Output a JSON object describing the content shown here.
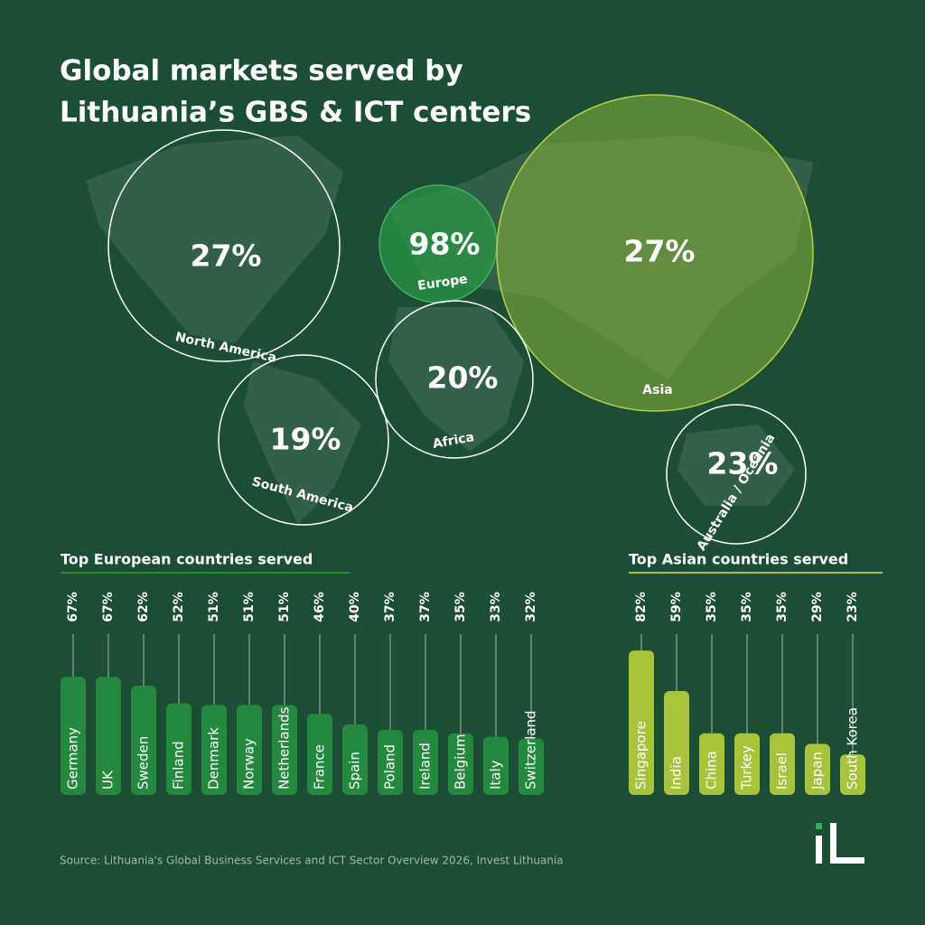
{
  "title": [
    "Global markets served by",
    "Lithuania’s GBS & ICT centers"
  ],
  "source": "Source: Lithuania's Global Business Services and ICT Sector Overview 2026, Invest Lithuania",
  "chart_data": [
    {
      "type": "bubble_map",
      "categories": [
        "North America",
        "Europe",
        "Asia",
        "Africa",
        "South America",
        "Australia / Oceania"
      ],
      "values": [
        27,
        98,
        27,
        20,
        19,
        23
      ],
      "value_labels": [
        "27%",
        "98%",
        "27%",
        "20%",
        "19%",
        "23%"
      ]
    },
    {
      "type": "bar",
      "title": "Top European countries served",
      "color": "#24893f",
      "categories": [
        "Germany",
        "UK",
        "Sweden",
        "Finland",
        "Denmark",
        "Norway",
        "Netherlands",
        "France",
        "Spain",
        "Poland",
        "Ireland",
        "Belgium",
        "Italy",
        "Switzerland"
      ],
      "values": [
        67,
        67,
        62,
        52,
        51,
        51,
        51,
        46,
        40,
        37,
        37,
        35,
        33,
        32
      ],
      "value_labels": [
        "67%",
        "67%",
        "62%",
        "52%",
        "51%",
        "51%",
        "51%",
        "46%",
        "40%",
        "37%",
        "37%",
        "35%",
        "33%",
        "32%"
      ]
    },
    {
      "type": "bar",
      "title": "Top Asian countries served",
      "color": "#a7c23b",
      "categories": [
        "Singapore",
        "India",
        "China",
        "Turkey",
        "Israel",
        "Japan",
        "South Korea"
      ],
      "values": [
        82,
        59,
        35,
        35,
        35,
        29,
        23
      ],
      "value_labels": [
        "82%",
        "59%",
        "35%",
        "35%",
        "35%",
        "29%",
        "23%"
      ]
    }
  ]
}
